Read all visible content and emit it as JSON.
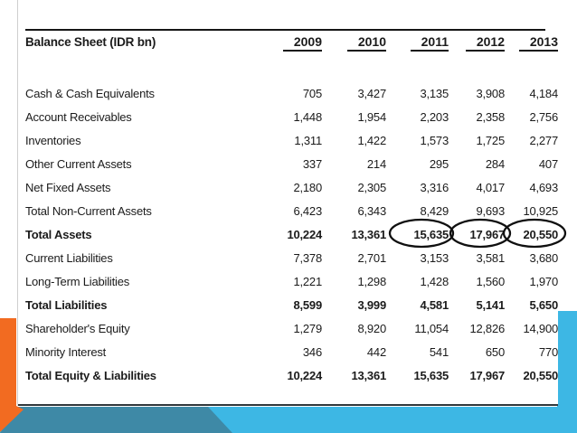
{
  "slide": {
    "table": {
      "title": "Balance Sheet (IDR bn)",
      "years": [
        "2009",
        "2010",
        "2011",
        "2012",
        "2013"
      ],
      "rows": [
        {
          "label": "Cash & Cash Equivalents",
          "bold": false,
          "values": [
            "705",
            "3,427",
            "3,135",
            "3,908",
            "4,184"
          ]
        },
        {
          "label": "Account Receivables",
          "bold": false,
          "values": [
            "1,448",
            "1,954",
            "2,203",
            "2,358",
            "2,756"
          ]
        },
        {
          "label": "Inventories",
          "bold": false,
          "values": [
            "1,311",
            "1,422",
            "1,573",
            "1,725",
            "2,277"
          ]
        },
        {
          "label": "Other Current Assets",
          "bold": false,
          "values": [
            "337",
            "214",
            "295",
            "284",
            "407"
          ]
        },
        {
          "label": "Net Fixed Assets",
          "bold": false,
          "values": [
            "2,180",
            "2,305",
            "3,316",
            "4,017",
            "4,693"
          ]
        },
        {
          "label": "Total Non-Current Assets",
          "bold": false,
          "values": [
            "6,423",
            "6,343",
            "8,429",
            "9,693",
            "10,925"
          ]
        },
        {
          "label": "Total Assets",
          "bold": true,
          "circled_columns": [
            "2011",
            "2012",
            "2013"
          ],
          "values": [
            "10,224",
            "13,361",
            "15,635",
            "17,967",
            "20,550"
          ]
        },
        {
          "label": "Current Liabilities",
          "bold": false,
          "values": [
            "7,378",
            "2,701",
            "3,153",
            "3,581",
            "3,680"
          ]
        },
        {
          "label": "Long-Term Liabilities",
          "bold": false,
          "values": [
            "1,221",
            "1,298",
            "1,428",
            "1,560",
            "1,970"
          ]
        },
        {
          "label": "Total Liabilities",
          "bold": true,
          "values": [
            "8,599",
            "3,999",
            "4,581",
            "5,141",
            "5,650"
          ]
        },
        {
          "label": "Shareholder's Equity",
          "bold": false,
          "values": [
            "1,279",
            "8,920",
            "11,054",
            "12,826",
            "14,900"
          ]
        },
        {
          "label": "Minority Interest",
          "bold": false,
          "values": [
            "346",
            "442",
            "541",
            "650",
            "770"
          ]
        },
        {
          "label": "Total Equity & Liabilities",
          "bold": true,
          "values": [
            "10,224",
            "13,361",
            "15,635",
            "17,967",
            "20,550"
          ]
        }
      ]
    },
    "highlight": {
      "circled_values": [
        "15,635",
        "17,967",
        "20,550"
      ]
    },
    "colors": {
      "accent_orange": "#F26B21",
      "accent_cyan": "#3DB7E4",
      "accent_teal": "#3E89A6",
      "rule_black": "#141414",
      "panel_border": "#30383c",
      "text": "#1b1b1b"
    }
  },
  "chart_data": {
    "type": "table",
    "title": "Balance Sheet (IDR bn)",
    "columns": [
      "2009",
      "2010",
      "2011",
      "2012",
      "2013"
    ],
    "row_labels": [
      "Cash & Cash Equivalents",
      "Account Receivables",
      "Inventories",
      "Other Current Assets",
      "Net Fixed Assets",
      "Total Non-Current Assets",
      "Total Assets",
      "Current Liabilities",
      "Long-Term Liabilities",
      "Total Liabilities",
      "Shareholder's Equity",
      "Minority Interest",
      "Total Equity & Liabilities"
    ],
    "values": [
      [
        705,
        3427,
        3135,
        3908,
        4184
      ],
      [
        1448,
        1954,
        2203,
        2358,
        2756
      ],
      [
        1311,
        1422,
        1573,
        1725,
        2277
      ],
      [
        337,
        214,
        295,
        284,
        407
      ],
      [
        2180,
        2305,
        3316,
        4017,
        4693
      ],
      [
        6423,
        6343,
        8429,
        9693,
        10925
      ],
      [
        10224,
        13361,
        15635,
        17967,
        20550
      ],
      [
        7378,
        2701,
        3153,
        3581,
        3680
      ],
      [
        1221,
        1298,
        1428,
        1560,
        1970
      ],
      [
        8599,
        3999,
        4581,
        5141,
        5650
      ],
      [
        1279,
        8920,
        11054,
        12826,
        14900
      ],
      [
        346,
        442,
        541,
        650,
        770
      ],
      [
        10224,
        13361,
        15635,
        17967,
        20550
      ]
    ],
    "annotations": [
      "Hand-drawn ellipses circle Total Assets values for 2011, 2012 and 2013"
    ]
  }
}
